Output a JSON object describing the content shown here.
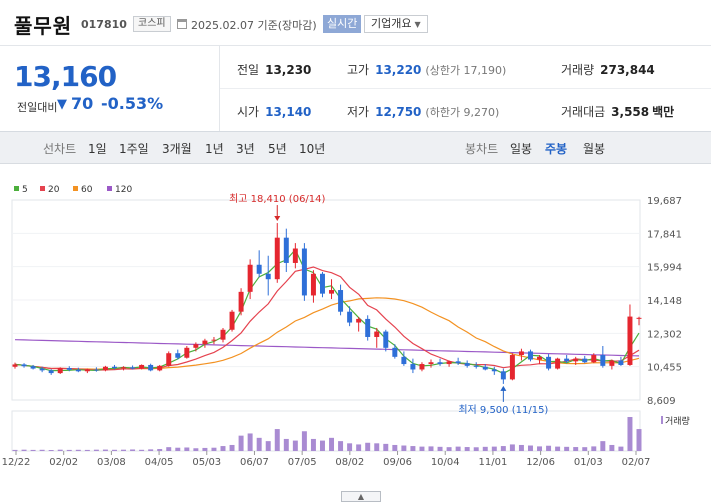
{
  "header": {
    "stock_name": "풀무원",
    "stock_code": "017810",
    "market": "코스피",
    "date_text": "2025.02.07 기준(장마감)",
    "realtime_label": "실시간",
    "company_label": "기업개요"
  },
  "summary": {
    "current_price": "13,160",
    "diff_label": "전일대비",
    "diff_value": "70",
    "diff_percent": "-0.53%",
    "prev_label": "전일",
    "prev_value": "13,230",
    "high_label": "고가",
    "high_value": "13,220",
    "upper_limit": "(상한가 17,190)",
    "volume_label": "거래량",
    "volume_value": "273,844",
    "open_label": "시가",
    "open_value": "13,140",
    "low_label": "저가",
    "low_value": "12,750",
    "lower_limit": "(하한가 9,270)",
    "amount_label": "거래대금",
    "amount_value": "3,558",
    "amount_unit": "백만"
  },
  "toolbar": {
    "line_chart_label": "선차트",
    "periods": [
      "1일",
      "1주일",
      "3개월",
      "1년",
      "3년",
      "5년",
      "10년"
    ],
    "candle_label": "봉차트",
    "candle_types": [
      "일봉",
      "주봉",
      "월봉"
    ],
    "selected_candle": "주봉"
  },
  "chart_data": {
    "type": "candlestick",
    "legend": [
      "5",
      "20",
      "60",
      "120"
    ],
    "ma_colors": {
      "5": "#4caf3c",
      "20": "#e5434f",
      "60": "#f39222",
      "120": "#9b59c7"
    },
    "up_color": "#e5262f",
    "down_color": "#2e6fd8",
    "volume_color": "#a98bd2",
    "y_ticks": [
      "19,687",
      "17,841",
      "15,994",
      "14,148",
      "12,302",
      "10,455",
      "8,609"
    ],
    "ylim": [
      8609,
      19687
    ],
    "x_ticks": [
      "12/22",
      "02/02",
      "03/08",
      "04/05",
      "05/03",
      "06/07",
      "07/05",
      "08/02",
      "09/06",
      "10/04",
      "11/01",
      "12/06",
      "01/03",
      "02/07"
    ],
    "high_annotation": "최고 18,410 (06/14)",
    "low_annotation": "최저 9,500 (11/15)",
    "volume_label": "거래량",
    "candles": [
      [
        10450,
        10680,
        10350,
        10580
      ],
      [
        10580,
        10650,
        10400,
        10480
      ],
      [
        10480,
        10550,
        10300,
        10350
      ],
      [
        10350,
        10450,
        10150,
        10250
      ],
      [
        10250,
        10320,
        10000,
        10100
      ],
      [
        10100,
        10420,
        10050,
        10380
      ],
      [
        10380,
        10480,
        10200,
        10280
      ],
      [
        10280,
        10400,
        10150,
        10200
      ],
      [
        10200,
        10350,
        10100,
        10300
      ],
      [
        10300,
        10420,
        10180,
        10250
      ],
      [
        10250,
        10500,
        10200,
        10450
      ],
      [
        10450,
        10550,
        10300,
        10380
      ],
      [
        10380,
        10480,
        10250,
        10420
      ],
      [
        10420,
        10520,
        10300,
        10350
      ],
      [
        10350,
        10580,
        10300,
        10550
      ],
      [
        10550,
        10620,
        10200,
        10250
      ],
      [
        10250,
        10550,
        10200,
        10500
      ],
      [
        10500,
        11300,
        10450,
        11200
      ],
      [
        11200,
        11400,
        10850,
        10950
      ],
      [
        10950,
        11600,
        10900,
        11500
      ],
      [
        11500,
        11800,
        11300,
        11700
      ],
      [
        11700,
        12000,
        11500,
        11900
      ],
      [
        11900,
        12100,
        11700,
        11950
      ],
      [
        11950,
        12600,
        11800,
        12500
      ],
      [
        12500,
        13600,
        12400,
        13500
      ],
      [
        13500,
        14800,
        13300,
        14600
      ],
      [
        14600,
        16400,
        14200,
        16100
      ],
      [
        16100,
        16900,
        15400,
        15600
      ],
      [
        15600,
        16600,
        14400,
        15300
      ],
      [
        15300,
        18410,
        15100,
        17600
      ],
      [
        17600,
        18100,
        15700,
        16200
      ],
      [
        16200,
        17300,
        15900,
        17000
      ],
      [
        17000,
        17300,
        14100,
        14400
      ],
      [
        14400,
        15800,
        14000,
        15600
      ],
      [
        15600,
        15700,
        14300,
        14500
      ],
      [
        14500,
        15300,
        14200,
        14700
      ],
      [
        14700,
        15000,
        13300,
        13500
      ],
      [
        13500,
        13800,
        12700,
        12900
      ],
      [
        12900,
        13200,
        12400,
        13100
      ],
      [
        13100,
        13300,
        11900,
        12100
      ],
      [
        12100,
        12600,
        11500,
        12400
      ],
      [
        12400,
        12500,
        11300,
        11500
      ],
      [
        11500,
        11700,
        10900,
        11000
      ],
      [
        11000,
        11300,
        10500,
        10600
      ],
      [
        10600,
        10900,
        10100,
        10300
      ],
      [
        10300,
        10700,
        10200,
        10600
      ],
      [
        10600,
        10850,
        10400,
        10700
      ],
      [
        10700,
        10900,
        10500,
        10600
      ],
      [
        10600,
        10800,
        10450,
        10750
      ],
      [
        10750,
        10950,
        10550,
        10650
      ],
      [
        10650,
        10800,
        10400,
        10500
      ],
      [
        10500,
        10700,
        10350,
        10450
      ],
      [
        10450,
        10600,
        10250,
        10300
      ],
      [
        10300,
        10450,
        10000,
        10200
      ],
      [
        10200,
        10350,
        9500,
        9750
      ],
      [
        9750,
        11200,
        9700,
        11100
      ],
      [
        11100,
        11450,
        10800,
        11300
      ],
      [
        11300,
        11400,
        10750,
        10850
      ],
      [
        10850,
        11100,
        10600,
        11000
      ],
      [
        11000,
        11150,
        10250,
        10350
      ],
      [
        10350,
        10950,
        10300,
        10900
      ],
      [
        10900,
        11100,
        10650,
        10750
      ],
      [
        10750,
        11000,
        10550,
        10900
      ],
      [
        10900,
        11050,
        10650,
        10700
      ],
      [
        10700,
        11200,
        10650,
        11100
      ],
      [
        11100,
        11600,
        10400,
        10500
      ],
      [
        10500,
        10850,
        10300,
        10800
      ],
      [
        10800,
        11000,
        10500,
        10550
      ],
      [
        10550,
        13900,
        10500,
        13230
      ],
      [
        13140,
        13220,
        12750,
        13160
      ]
    ],
    "volumes": [
      10,
      12,
      10,
      11,
      9,
      12,
      10,
      11,
      10,
      12,
      13,
      11,
      12,
      14,
      11,
      15,
      18,
      35,
      30,
      32,
      25,
      28,
      30,
      45,
      55,
      140,
      160,
      120,
      90,
      200,
      110,
      95,
      180,
      110,
      95,
      120,
      90,
      70,
      60,
      75,
      70,
      65,
      55,
      50,
      45,
      40,
      42,
      38,
      35,
      40,
      36,
      34,
      38,
      40,
      45,
      60,
      55,
      50,
      42,
      48,
      40,
      38,
      36,
      35,
      42,
      90,
      55,
      40,
      310,
      200
    ]
  }
}
